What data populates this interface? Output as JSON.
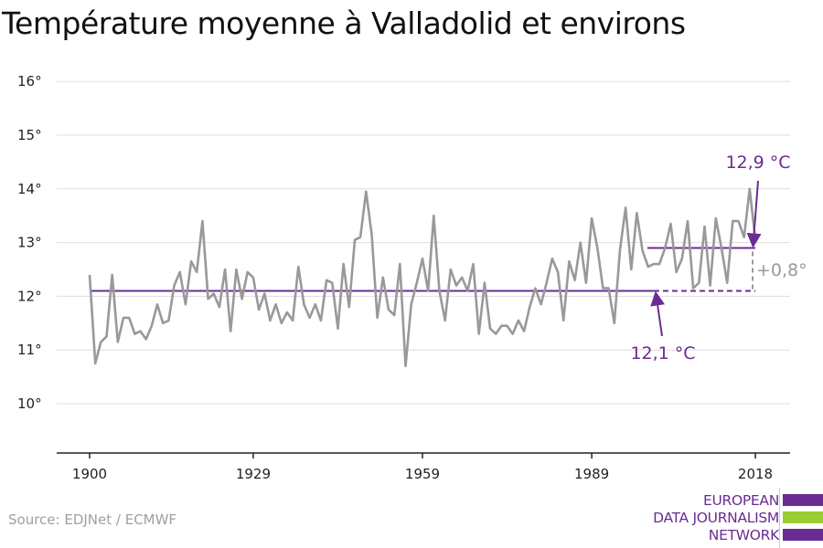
{
  "title": "Température moyenne à Valladolid et environs",
  "source": "Source: EDJNet / ECMWF",
  "logo": {
    "lines": [
      "EUROPEAN",
      "DATA JOURNALISM",
      "NETWORK"
    ],
    "colors": [
      "#6a2c91",
      "#9acd32",
      "#6a2c91"
    ]
  },
  "chart_data": {
    "type": "line",
    "title": "Température moyenne à Valladolid et environs",
    "xlabel": "",
    "ylabel": "",
    "xlim": [
      1900,
      2018
    ],
    "ylim": [
      9.1,
      16.5
    ],
    "xticks": [
      1900,
      1929,
      1959,
      1989,
      2018
    ],
    "xtick_labels": [
      "1900",
      "1929",
      "1959",
      "1989",
      "2018"
    ],
    "yticks": [
      10,
      11,
      12,
      13,
      14,
      15,
      16
    ],
    "ytick_labels": [
      "10°",
      "11°",
      "12°",
      "13°",
      "14°",
      "15°",
      "16°"
    ],
    "grid": true,
    "series": [
      {
        "color": "#999999",
        "x": [
          1900,
          1901,
          1902,
          1903,
          1904,
          1905,
          1906,
          1907,
          1908,
          1909,
          1910,
          1911,
          1912,
          1913,
          1914,
          1915,
          1916,
          1917,
          1918,
          1919,
          1920,
          1921,
          1922,
          1923,
          1924,
          1925,
          1926,
          1927,
          1928,
          1929,
          1930,
          1931,
          1932,
          1933,
          1934,
          1935,
          1936,
          1937,
          1938,
          1939,
          1940,
          1941,
          1942,
          1943,
          1944,
          1945,
          1946,
          1947,
          1948,
          1949,
          1950,
          1951,
          1952,
          1953,
          1954,
          1955,
          1956,
          1957,
          1958,
          1959,
          1960,
          1961,
          1962,
          1963,
          1964,
          1965,
          1966,
          1967,
          1968,
          1969,
          1970,
          1971,
          1972,
          1973,
          1974,
          1975,
          1976,
          1977,
          1978,
          1979,
          1980,
          1981,
          1982,
          1983,
          1984,
          1985,
          1986,
          1987,
          1988,
          1989,
          1990,
          1991,
          1992,
          1993,
          1994,
          1995,
          1996,
          1997,
          1998,
          1999,
          2000,
          2001,
          2002,
          2003,
          2004,
          2005,
          2006,
          2007,
          2008,
          2009,
          2010,
          2011,
          2012,
          2013,
          2014,
          2015,
          2016,
          2017,
          2018
        ],
        "y": [
          12.4,
          10.75,
          11.15,
          11.25,
          12.4,
          11.15,
          11.6,
          11.6,
          11.3,
          11.35,
          11.2,
          11.45,
          11.85,
          11.5,
          11.55,
          12.2,
          12.45,
          11.85,
          12.65,
          12.45,
          13.4,
          11.95,
          12.05,
          11.8,
          12.5,
          11.35,
          12.5,
          11.95,
          12.45,
          12.35,
          11.75,
          12.05,
          11.55,
          11.85,
          11.5,
          11.7,
          11.55,
          12.55,
          11.85,
          11.6,
          11.85,
          11.55,
          12.3,
          12.25,
          11.4,
          12.6,
          11.8,
          13.05,
          13.1,
          13.95,
          13.15,
          11.6,
          12.35,
          11.75,
          11.65,
          12.6,
          10.7,
          11.85,
          12.25,
          12.7,
          12.1,
          13.5,
          12.1,
          11.55,
          12.5,
          12.2,
          12.35,
          12.1,
          12.6,
          11.3,
          12.25,
          11.4,
          11.3,
          11.45,
          11.45,
          11.3,
          11.55,
          11.35,
          11.8,
          12.15,
          11.85,
          12.25,
          12.7,
          12.45,
          11.55,
          12.65,
          12.3,
          13.0,
          12.25,
          13.45,
          12.9,
          12.15,
          12.15,
          11.5,
          12.85,
          13.65,
          12.5,
          13.55,
          12.85,
          12.55,
          12.6,
          12.6,
          12.9,
          13.35,
          12.45,
          12.7,
          13.4,
          12.15,
          12.25,
          13.3,
          12.2,
          13.45,
          12.9,
          12.25,
          13.4,
          13.4,
          13.1,
          14.0,
          13.05
        ]
      }
    ],
    "reference_lines": [
      {
        "value": 12.1,
        "from": 1900,
        "to": 2018,
        "solid_until": 2000,
        "color": "#6a2c91",
        "label": "12,1 °C"
      },
      {
        "value": 12.9,
        "from": 2000,
        "to": 2018,
        "color": "#6a2c91",
        "label": "12,9 °C"
      }
    ],
    "difference_label": "+0,8°",
    "difference_color": "#999999"
  }
}
